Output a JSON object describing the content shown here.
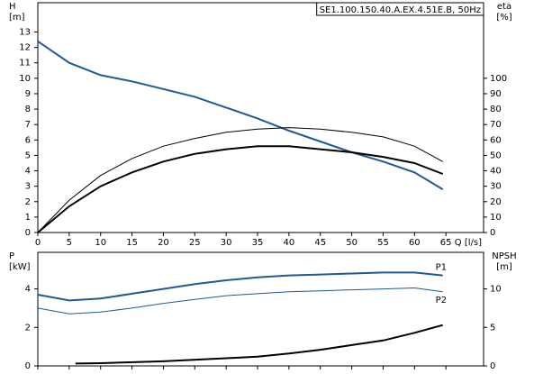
{
  "chart_data": [
    {
      "type": "line",
      "title": "SE1.100.150.40.A.EX.4.51E.B, 50Hz",
      "y_label": "H",
      "y_unit": "[m]",
      "y2_label": "eta",
      "y2_unit": "[%]",
      "x_label": "Q [l/s]",
      "x": [
        0,
        5,
        10,
        15,
        20,
        25,
        30,
        35,
        40,
        45,
        50,
        55,
        60,
        64.5
      ],
      "xlim": [
        0,
        71
      ],
      "xticks": [
        0,
        5,
        10,
        15,
        20,
        25,
        30,
        35,
        40,
        45,
        50,
        55,
        60,
        65
      ],
      "ylim": [
        0,
        14.9
      ],
      "yticks": [
        0,
        1,
        2,
        3,
        4,
        5,
        6,
        7,
        8,
        9,
        10,
        11,
        12,
        13
      ],
      "y2lim": [
        0,
        149
      ],
      "y2ticks": [
        0,
        10,
        20,
        30,
        40,
        50,
        60,
        70,
        80,
        90,
        100
      ],
      "series": [
        {
          "color": "#1f5a96",
          "width": 2,
          "values": [
            12.4,
            11,
            10.2,
            9.8,
            9.3,
            8.8,
            8.1,
            7.4,
            6.6,
            5.9,
            5.2,
            4.6,
            3.9,
            2.8
          ]
        },
        {
          "color": "#000000",
          "width": 1,
          "axis": "y2",
          "values": [
            0,
            21,
            37,
            48,
            56,
            61,
            65,
            67,
            68,
            67,
            65,
            62,
            56,
            46
          ]
        },
        {
          "color": "#000000",
          "width": 2,
          "axis": "y2",
          "values": [
            0,
            17,
            30,
            39,
            46,
            51,
            54,
            56,
            56,
            54,
            52,
            49,
            45,
            38
          ]
        }
      ]
    },
    {
      "type": "line",
      "y_label": "P",
      "y_unit": "[kW]",
      "y2_label": "NPSH",
      "y2_unit": "[m]",
      "x": [
        0,
        5,
        10,
        15,
        20,
        25,
        30,
        35,
        40,
        45,
        50,
        55,
        60,
        64.5
      ],
      "xlim": [
        0,
        71
      ],
      "xticks": [
        0,
        5,
        10,
        15,
        20,
        25,
        30,
        35,
        40,
        45,
        50,
        55,
        60,
        65
      ],
      "ylim": [
        0,
        5.9
      ],
      "yticks": [
        0,
        2,
        4
      ],
      "y2lim": [
        0,
        14.75
      ],
      "y2ticks": [
        0,
        5,
        10
      ],
      "series": [
        {
          "name": "P1",
          "color": "#1f5a96",
          "width": 2,
          "values": [
            3.7,
            3.4,
            3.5,
            3.75,
            4.0,
            4.25,
            4.45,
            4.6,
            4.7,
            4.75,
            4.8,
            4.85,
            4.85,
            4.7
          ]
        },
        {
          "name": "P2",
          "color": "#1f5a96",
          "width": 1,
          "values": [
            3.0,
            2.7,
            2.8,
            3.0,
            3.25,
            3.45,
            3.65,
            3.75,
            3.85,
            3.9,
            3.95,
            4.0,
            4.05,
            3.85
          ]
        },
        {
          "color": "#000000",
          "width": 2,
          "axis": "y2",
          "x": [
            6,
            10,
            20,
            30,
            35,
            40,
            45,
            50,
            55,
            60,
            64.5
          ],
          "values": [
            0.3,
            0.35,
            0.6,
            1.0,
            1.2,
            1.6,
            2.1,
            2.7,
            3.3,
            4.3,
            5.3
          ]
        }
      ]
    }
  ]
}
